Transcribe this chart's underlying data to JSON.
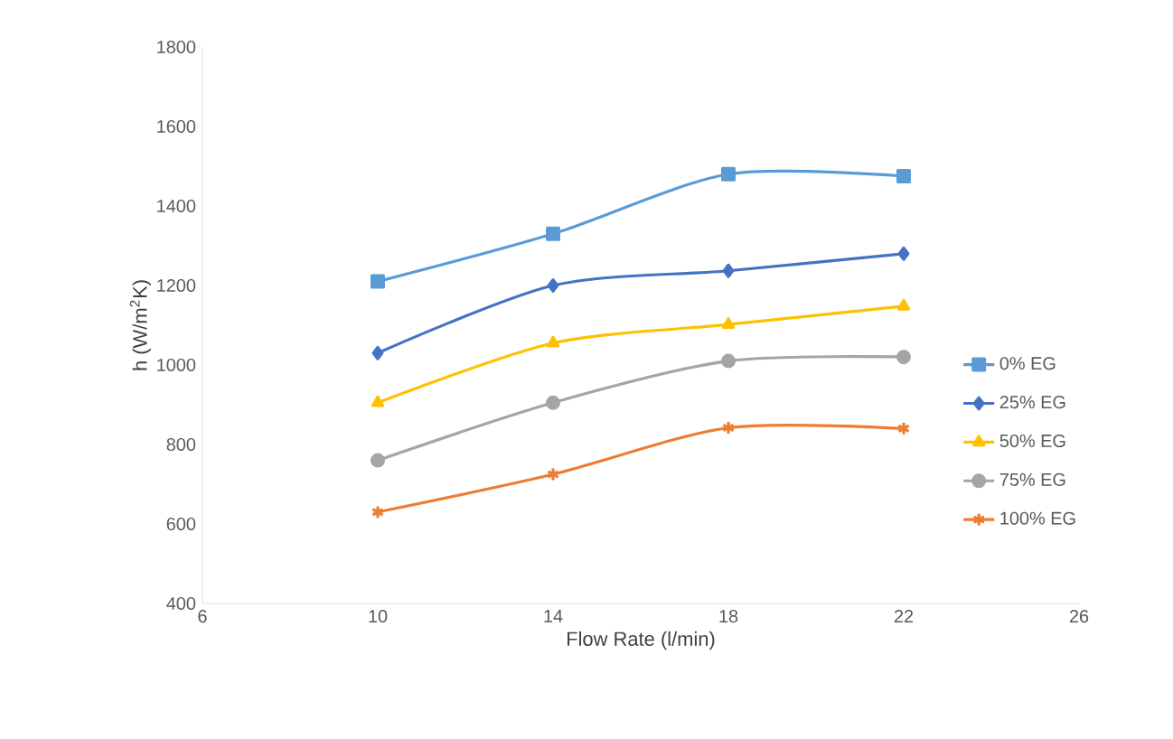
{
  "chart_data": {
    "type": "line",
    "xlabel": "Flow Rate (l/min)",
    "ylabel": "h (W/m$^{2}$K)",
    "x": [
      10,
      14,
      18,
      22
    ],
    "series": [
      {
        "name": "0% EG",
        "color": "#5b9bd5",
        "marker": "square",
        "values": [
          1210,
          1330,
          1480,
          1475
        ]
      },
      {
        "name": "25% EG",
        "color": "#4472c4",
        "marker": "diamond",
        "values": [
          1030,
          1200,
          1237,
          1280
        ]
      },
      {
        "name": "50% EG",
        "color": "#ffc000",
        "marker": "triangle",
        "values": [
          905,
          1055,
          1102,
          1148
        ]
      },
      {
        "name": "75% EG",
        "color": "#a5a5a5",
        "marker": "circle",
        "values": [
          760,
          905,
          1010,
          1020
        ]
      },
      {
        "name": "100% EG",
        "color": "#ed7d31",
        "marker": "cross",
        "values": [
          630,
          725,
          842,
          840
        ]
      }
    ],
    "xlim": [
      6,
      26
    ],
    "xticks": [
      6,
      10,
      14,
      18,
      22,
      26
    ],
    "ylim": [
      400,
      1800
    ],
    "yticks": [
      400,
      600,
      800,
      1000,
      1200,
      1400,
      1600,
      1800
    ],
    "grid": false,
    "legend": "right",
    "line_style": "solid"
  }
}
